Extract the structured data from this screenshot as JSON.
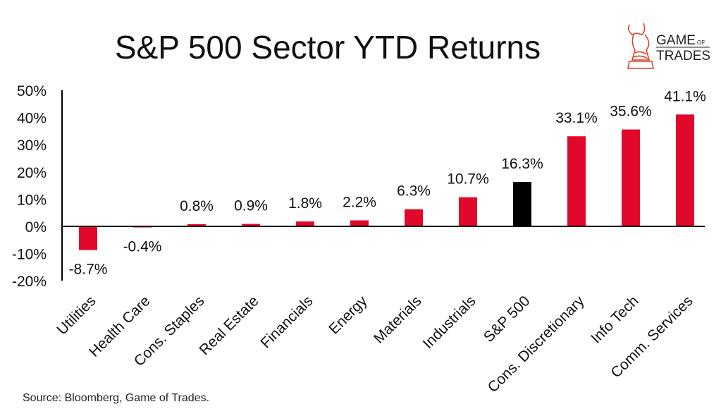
{
  "chart_data": {
    "type": "bar",
    "title": "S&P 500 Sector YTD Returns",
    "categories": [
      "Utilities",
      "Health Care",
      "Cons. Staples",
      "Real Estate",
      "Financials",
      "Energy",
      "Materials",
      "Industrials",
      "S&P 500",
      "Cons. Discretionary",
      "Info Tech",
      "Comm. Services"
    ],
    "values": [
      -8.7,
      -0.4,
      0.8,
      0.9,
      1.8,
      2.2,
      6.3,
      10.7,
      16.3,
      33.1,
      35.6,
      41.1
    ],
    "data_labels": [
      "-8.7%",
      "-0.4%",
      "0.8%",
      "0.9%",
      "1.8%",
      "2.2%",
      "6.3%",
      "10.7%",
      "16.3%",
      "33.1%",
      "35.6%",
      "41.1%"
    ],
    "bar_colors": [
      "#e0092b",
      "#e0092b",
      "#e0092b",
      "#e0092b",
      "#e0092b",
      "#e0092b",
      "#e0092b",
      "#e0092b",
      "#000000",
      "#e0092b",
      "#e0092b",
      "#e0092b"
    ],
    "ylim": [
      -20,
      50
    ],
    "yticks": [
      50,
      40,
      30,
      20,
      10,
      0,
      -10,
      -20
    ],
    "ytick_labels": [
      "50%",
      "40%",
      "30%",
      "20%",
      "10%",
      "0%",
      "-10%",
      "-20%"
    ],
    "xlabel": "",
    "ylabel": "",
    "grid": false
  },
  "source": "Source: Bloomberg, Game of Trades.",
  "logo": {
    "line1": "GAME OF",
    "line2": "TRADES"
  }
}
